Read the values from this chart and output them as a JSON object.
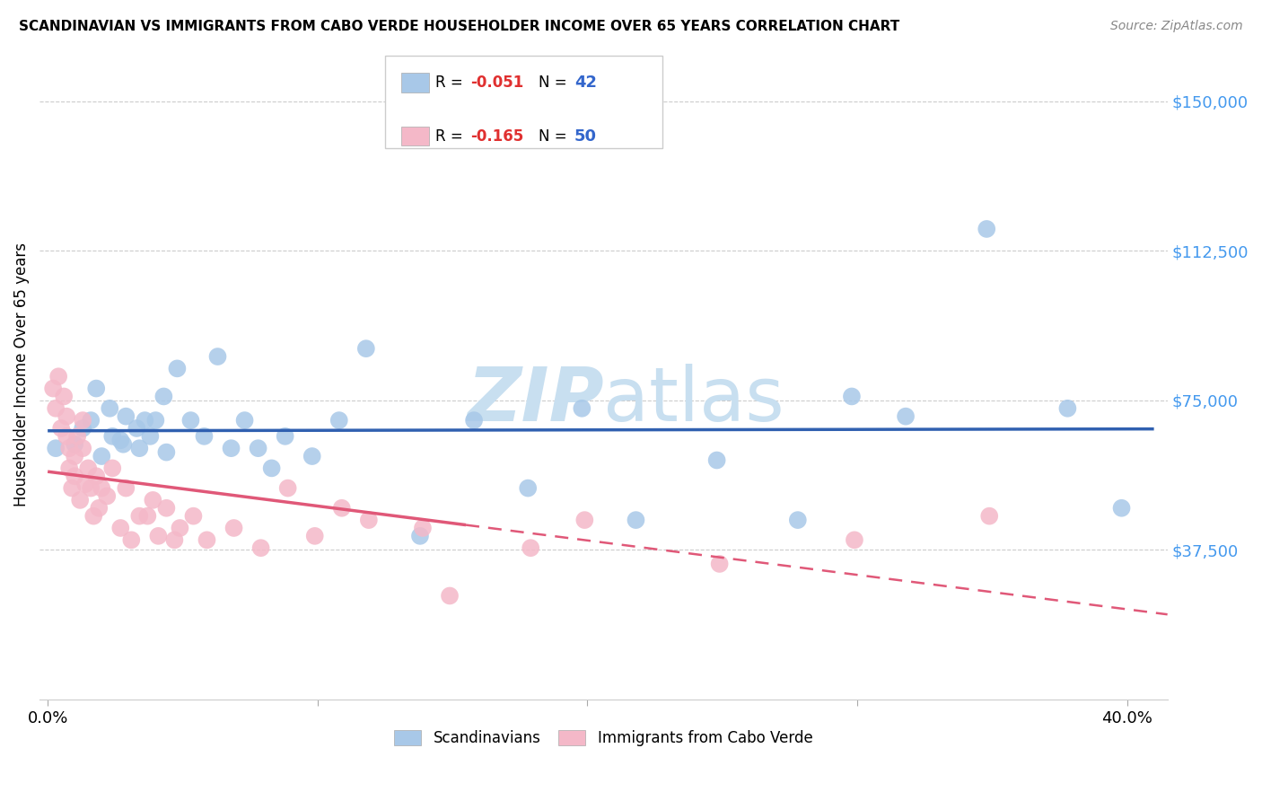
{
  "title": "SCANDINAVIAN VS IMMIGRANTS FROM CABO VERDE HOUSEHOLDER INCOME OVER 65 YEARS CORRELATION CHART",
  "source": "Source: ZipAtlas.com",
  "ylabel": "Householder Income Over 65 years",
  "ytick_labels": [
    "$37,500",
    "$75,000",
    "$112,500",
    "$150,000"
  ],
  "ytick_values": [
    37500,
    75000,
    112500,
    150000
  ],
  "ymin": 0,
  "ymax": 163000,
  "xmin": -0.003,
  "xmax": 0.415,
  "legend_blue_r": "-0.051",
  "legend_blue_n": "42",
  "legend_pink_r": "-0.165",
  "legend_pink_n": "50",
  "blue_color": "#a8c8e8",
  "pink_color": "#f4b8c8",
  "blue_line_color": "#3060b0",
  "pink_line_color": "#e05878",
  "watermark_color": "#c8dff0",
  "blue_scatter_x": [
    0.003,
    0.01,
    0.013,
    0.016,
    0.018,
    0.02,
    0.023,
    0.024,
    0.027,
    0.028,
    0.029,
    0.033,
    0.034,
    0.036,
    0.038,
    0.04,
    0.043,
    0.044,
    0.048,
    0.053,
    0.058,
    0.063,
    0.068,
    0.073,
    0.078,
    0.083,
    0.088,
    0.098,
    0.108,
    0.118,
    0.138,
    0.158,
    0.178,
    0.198,
    0.218,
    0.248,
    0.278,
    0.298,
    0.318,
    0.348,
    0.378,
    0.398
  ],
  "blue_scatter_y": [
    63000,
    64000,
    68000,
    70000,
    78000,
    61000,
    73000,
    66000,
    65000,
    64000,
    71000,
    68000,
    63000,
    70000,
    66000,
    70000,
    76000,
    62000,
    83000,
    70000,
    66000,
    86000,
    63000,
    70000,
    63000,
    58000,
    66000,
    61000,
    70000,
    88000,
    41000,
    70000,
    53000,
    73000,
    45000,
    60000,
    45000,
    76000,
    71000,
    118000,
    73000,
    48000
  ],
  "pink_scatter_x": [
    0.002,
    0.003,
    0.004,
    0.005,
    0.006,
    0.007,
    0.007,
    0.008,
    0.008,
    0.009,
    0.01,
    0.01,
    0.011,
    0.012,
    0.013,
    0.013,
    0.014,
    0.015,
    0.016,
    0.017,
    0.018,
    0.019,
    0.02,
    0.022,
    0.024,
    0.027,
    0.029,
    0.031,
    0.034,
    0.037,
    0.039,
    0.041,
    0.044,
    0.047,
    0.049,
    0.054,
    0.059,
    0.069,
    0.079,
    0.089,
    0.099,
    0.109,
    0.119,
    0.139,
    0.149,
    0.179,
    0.199,
    0.249,
    0.299,
    0.349
  ],
  "pink_scatter_y": [
    78000,
    73000,
    81000,
    68000,
    76000,
    66000,
    71000,
    63000,
    58000,
    53000,
    61000,
    56000,
    66000,
    50000,
    63000,
    70000,
    54000,
    58000,
    53000,
    46000,
    56000,
    48000,
    53000,
    51000,
    58000,
    43000,
    53000,
    40000,
    46000,
    46000,
    50000,
    41000,
    48000,
    40000,
    43000,
    46000,
    40000,
    43000,
    38000,
    53000,
    41000,
    48000,
    45000,
    43000,
    26000,
    38000,
    45000,
    34000,
    40000,
    46000
  ]
}
